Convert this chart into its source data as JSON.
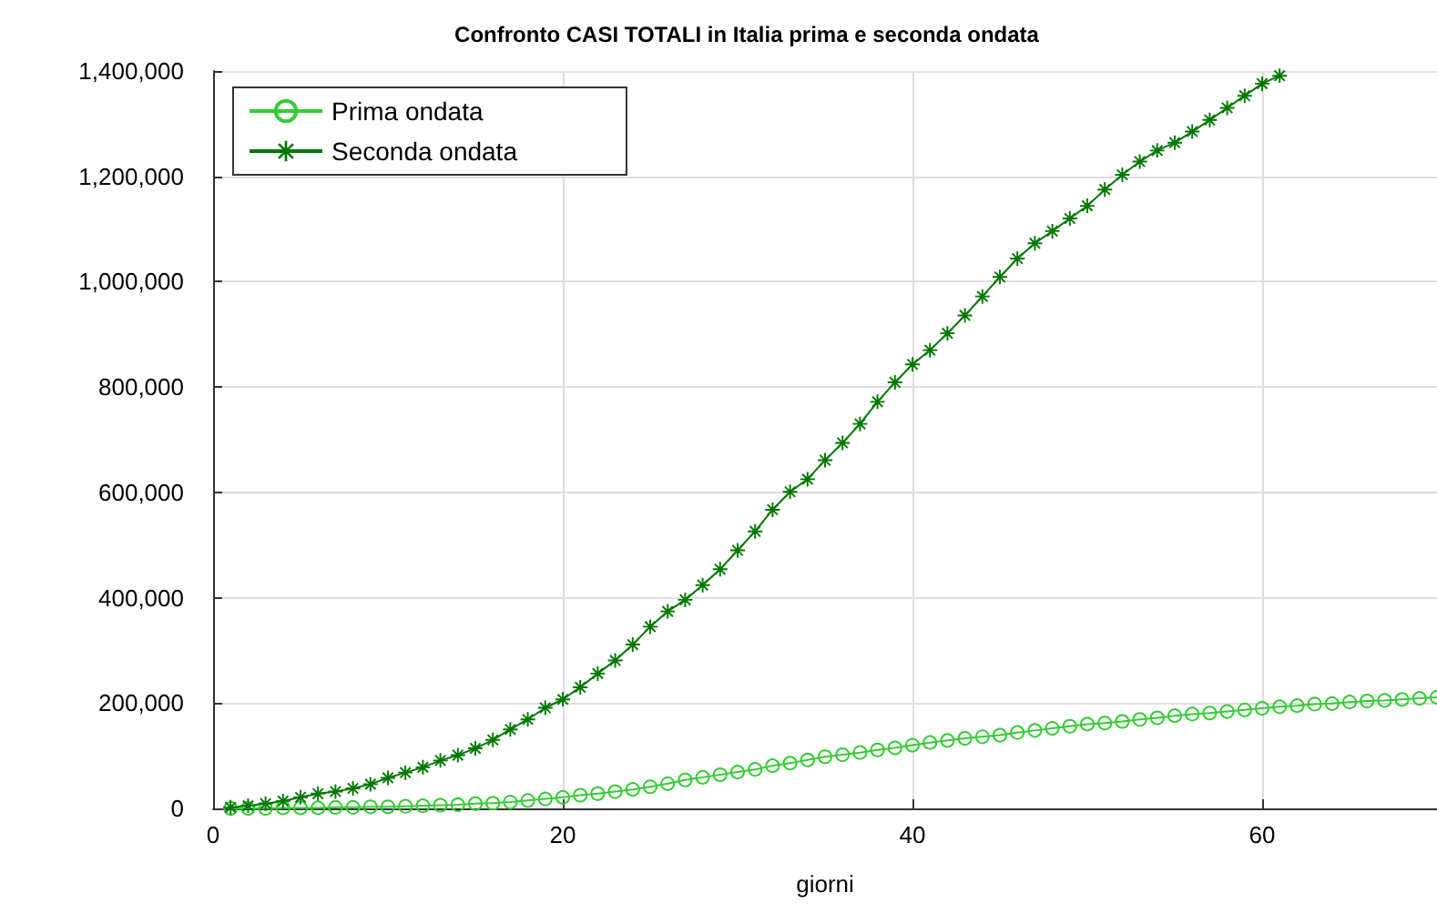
{
  "chart_data": {
    "type": "line",
    "title": "Confronto CASI TOTALI in Italia prima e seconda ondata",
    "xlabel": "giorni",
    "xlim": [
      0,
      70
    ],
    "xticks": [
      0,
      20,
      40,
      60
    ],
    "ylim": [
      0,
      1400000
    ],
    "yticks": [
      0,
      {
        "value": 200000,
        "label": "200,000"
      },
      {
        "value": 400000,
        "label": "400,000"
      },
      {
        "value": 600000,
        "label": "600,000"
      },
      {
        "value": 800000,
        "label": "800,000"
      },
      {
        "value": 1000000,
        "label": "1,000,000"
      },
      {
        "value": 1200000,
        "label": "1,200,000"
      },
      {
        "value": 1400000,
        "label": "1,400,000"
      }
    ],
    "grid": true,
    "legend": "top left",
    "series": [
      {
        "name": "Prima ondata",
        "color": "#33cc33",
        "marker": "circle",
        "x": [
          1,
          2,
          3,
          4,
          5,
          6,
          7,
          8,
          9,
          10,
          11,
          12,
          13,
          14,
          15,
          16,
          17,
          18,
          19,
          20,
          21,
          22,
          23,
          24,
          25,
          26,
          27,
          28,
          29,
          30,
          31,
          32,
          33,
          34,
          35,
          36,
          37,
          38,
          39,
          40,
          41,
          42,
          43,
          44,
          45,
          46,
          47,
          48,
          49,
          50,
          51,
          52,
          53,
          54,
          55,
          56,
          57,
          58,
          59,
          60,
          61,
          62,
          63,
          64,
          65,
          66,
          67,
          68,
          69,
          70
        ],
        "values": [
          0,
          0,
          0,
          1000,
          1000,
          1000,
          2000,
          2000,
          3000,
          3000,
          4000,
          5000,
          6000,
          7000,
          9000,
          10000,
          12000,
          15000,
          18000,
          21000,
          25000,
          28000,
          32000,
          36000,
          41000,
          47000,
          54000,
          59000,
          64000,
          69000,
          74000,
          81000,
          86000,
          92000,
          98000,
          102000,
          106000,
          111000,
          115000,
          120000,
          125000,
          129000,
          133000,
          136000,
          139000,
          144000,
          148000,
          152000,
          156000,
          160000,
          162000,
          165000,
          169000,
          172000,
          176000,
          179000,
          181000,
          184000,
          187000,
          190000,
          193000,
          195000,
          198000,
          199000,
          202000,
          204000,
          205000,
          207000,
          209000,
          211000
        ]
      },
      {
        "name": "Seconda ondata",
        "color": "#007700",
        "marker": "star",
        "x": [
          1,
          2,
          3,
          4,
          5,
          6,
          7,
          8,
          9,
          10,
          11,
          12,
          13,
          14,
          15,
          16,
          17,
          18,
          19,
          20,
          21,
          22,
          23,
          24,
          25,
          26,
          27,
          28,
          29,
          30,
          31,
          32,
          33,
          34,
          35,
          36,
          37,
          38,
          39,
          40,
          41,
          42,
          43,
          44,
          45,
          46,
          47,
          48,
          49,
          50,
          51,
          52,
          53,
          54,
          55,
          56,
          57,
          58,
          59,
          60,
          61
        ],
        "values": [
          2000,
          5000,
          9000,
          14000,
          21000,
          28000,
          32000,
          38000,
          46000,
          58000,
          68000,
          78000,
          91000,
          101000,
          114000,
          130000,
          150000,
          169000,
          191000,
          207000,
          230000,
          256000,
          281000,
          311000,
          345000,
          374000,
          396000,
          424000,
          454000,
          490000,
          526000,
          567000,
          601000,
          625000,
          661000,
          694000,
          730000,
          772000,
          809000,
          843000,
          870000,
          902000,
          936000,
          972000,
          1009000,
          1044000,
          1073000,
          1096000,
          1120000,
          1144000,
          1175000,
          1203000,
          1228000,
          1249000,
          1264000,
          1285000,
          1307000,
          1330000,
          1353000,
          1376000,
          1391000
        ]
      }
    ]
  }
}
